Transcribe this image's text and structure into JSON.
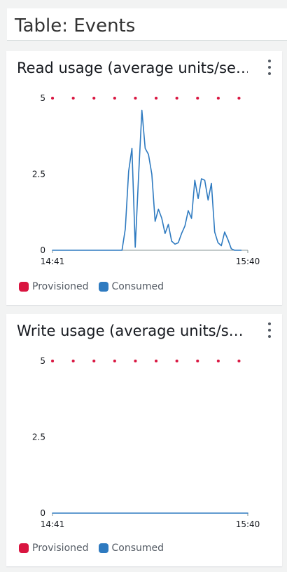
{
  "page": {
    "title": "Table: Events"
  },
  "colors": {
    "provisioned": "#d91540",
    "consumed": "#2e7ac0"
  },
  "legend": {
    "provisioned_label": "Provisioned",
    "consumed_label": "Consumed"
  },
  "cards": [
    {
      "title": "Read usage (average units/se…"
    },
    {
      "title": "Write usage (average units/s…"
    }
  ],
  "chart_data": [
    {
      "type": "line",
      "title": "Read usage (average units/se…",
      "xlabel": "",
      "ylabel": "",
      "x_tick_labels": [
        "14:41",
        "15:40"
      ],
      "y_tick_labels": [
        "0",
        "2.5",
        "5"
      ],
      "xlim": [
        0,
        59
      ],
      "ylim": [
        0,
        5
      ],
      "legend_placement": "bottom-left",
      "series": [
        {
          "name": "Provisioned",
          "style": "dotted",
          "x": [
            0,
            59
          ],
          "y": [
            5,
            5
          ]
        },
        {
          "name": "Consumed",
          "x": [
            0,
            21,
            22,
            23,
            24,
            25,
            26,
            27,
            28,
            29,
            30,
            31,
            32,
            33,
            34,
            35,
            36,
            37,
            38,
            39,
            40,
            41,
            42,
            43,
            44,
            45,
            46,
            47,
            48,
            49,
            50,
            51,
            52,
            53,
            54,
            55,
            56,
            57
          ],
          "y": [
            0,
            0,
            0.7,
            2.6,
            3.35,
            0.1,
            2.4,
            4.6,
            3.35,
            3.15,
            2.5,
            0.95,
            1.35,
            1.05,
            0.55,
            0.85,
            0.3,
            0.2,
            0.25,
            0.55,
            0.8,
            1.3,
            1.05,
            2.3,
            1.7,
            2.35,
            2.3,
            1.65,
            2.2,
            0.6,
            0.25,
            0.15,
            0.6,
            0.35,
            0.05,
            0,
            0,
            0
          ]
        }
      ]
    },
    {
      "type": "line",
      "title": "Write usage (average units/s…",
      "xlabel": "",
      "ylabel": "",
      "x_tick_labels": [
        "14:41",
        "15:40"
      ],
      "y_tick_labels": [
        "0",
        "2.5",
        "5"
      ],
      "xlim": [
        0,
        59
      ],
      "ylim": [
        0,
        5
      ],
      "legend_placement": "bottom-left",
      "series": [
        {
          "name": "Provisioned",
          "style": "dotted",
          "x": [
            0,
            59
          ],
          "y": [
            5,
            5
          ]
        },
        {
          "name": "Consumed",
          "x": [
            0,
            59
          ],
          "y": [
            0,
            0
          ]
        }
      ]
    }
  ]
}
